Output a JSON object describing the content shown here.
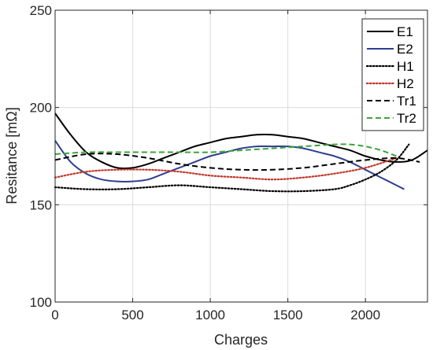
{
  "chart_data": {
    "type": "line",
    "title": "",
    "xlabel": "Charges",
    "ylabel": "Resitance [mΩ]",
    "xlim": [
      0,
      2400
    ],
    "ylim": [
      100,
      250
    ],
    "xticks": [
      0,
      500,
      1000,
      1500,
      2000
    ],
    "yticks": [
      100,
      150,
      200,
      250
    ],
    "grid": true,
    "legend_position": "top-right",
    "series": [
      {
        "name": "E1",
        "color": "#000000",
        "style": "solid",
        "x": [
          0,
          100,
          200,
          300,
          400,
          500,
          600,
          700,
          800,
          900,
          1000,
          1100,
          1200,
          1300,
          1400,
          1500,
          1600,
          1700,
          1800,
          1900,
          2000,
          2100,
          2200,
          2300,
          2400
        ],
        "y": [
          197,
          186,
          177,
          172,
          169,
          169,
          171,
          174,
          177,
          180,
          182,
          184,
          185,
          186,
          186,
          185,
          184,
          182,
          180,
          178,
          175,
          173,
          172,
          173,
          178
        ]
      },
      {
        "name": "E2",
        "color": "#2e3f8f",
        "style": "solid",
        "x": [
          0,
          100,
          200,
          300,
          400,
          500,
          600,
          700,
          800,
          900,
          1000,
          1100,
          1200,
          1300,
          1400,
          1500,
          1600,
          1700,
          1800,
          1900,
          2000,
          2100,
          2200,
          2250
        ],
        "y": [
          183,
          172,
          166,
          163,
          162,
          162,
          163,
          166,
          169,
          172,
          175,
          177,
          179,
          180,
          180,
          180,
          179,
          177,
          175,
          172,
          168,
          164,
          160,
          158
        ]
      },
      {
        "name": "H1",
        "color": "#000000",
        "style": "dotted",
        "x": [
          0,
          200,
          400,
          600,
          800,
          1000,
          1200,
          1400,
          1600,
          1800,
          1900,
          2000,
          2100,
          2200,
          2280
        ],
        "y": [
          159,
          158,
          158,
          159,
          160,
          159,
          158,
          157,
          157,
          158,
          160,
          163,
          167,
          173,
          181
        ]
      },
      {
        "name": "H2",
        "color": "#c0392b",
        "style": "dotted",
        "x": [
          0,
          200,
          400,
          600,
          800,
          1000,
          1200,
          1400,
          1600,
          1800,
          2000,
          2200
        ],
        "y": [
          164,
          167,
          168,
          168,
          167,
          165,
          164,
          163,
          164,
          166,
          169,
          174
        ]
      },
      {
        "name": "Tr1",
        "color": "#000000",
        "style": "dashed",
        "x": [
          0,
          200,
          400,
          600,
          800,
          1000,
          1200,
          1400,
          1600,
          1800,
          2000,
          2200,
          2350
        ],
        "y": [
          173,
          176,
          176,
          174,
          171,
          169,
          168,
          168,
          169,
          171,
          173,
          174,
          172
        ]
      },
      {
        "name": "Tr2",
        "color": "#3aa53a",
        "style": "dashed",
        "x": [
          0,
          200,
          400,
          600,
          800,
          1000,
          1200,
          1400,
          1600,
          1800,
          1900,
          2000,
          2100,
          2200
        ],
        "y": [
          176,
          177,
          177,
          177,
          177,
          177,
          178,
          179,
          180,
          181,
          181,
          180,
          178,
          175
        ]
      }
    ]
  }
}
